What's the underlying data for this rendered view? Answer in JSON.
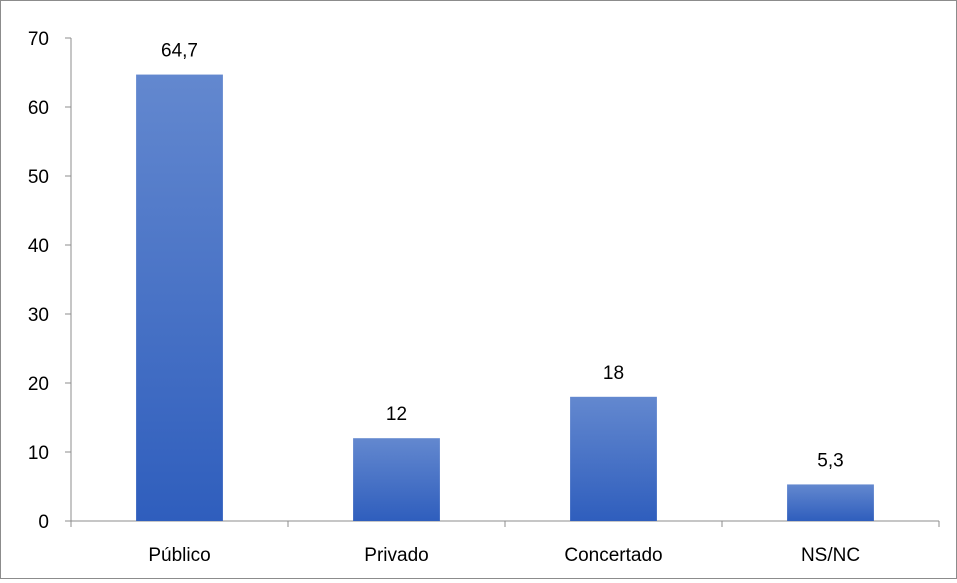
{
  "chart_data": {
    "type": "bar",
    "categories": [
      "Público",
      "Privado",
      "Concertado",
      "NS/NC"
    ],
    "values": [
      64.7,
      12,
      18,
      5.3
    ],
    "data_labels": [
      "64,7",
      "12",
      "18",
      "5,3"
    ],
    "y_ticks": [
      "0",
      "10",
      "20",
      "30",
      "40",
      "50",
      "60",
      "70"
    ],
    "ylim": [
      0,
      70
    ],
    "title": "",
    "xlabel": "",
    "ylabel": "",
    "grid": false,
    "legend": "none",
    "bar_color_top": "#6388cf",
    "bar_color_bottom": "#2f5ebd",
    "axis_color": "#8c8c8c"
  }
}
